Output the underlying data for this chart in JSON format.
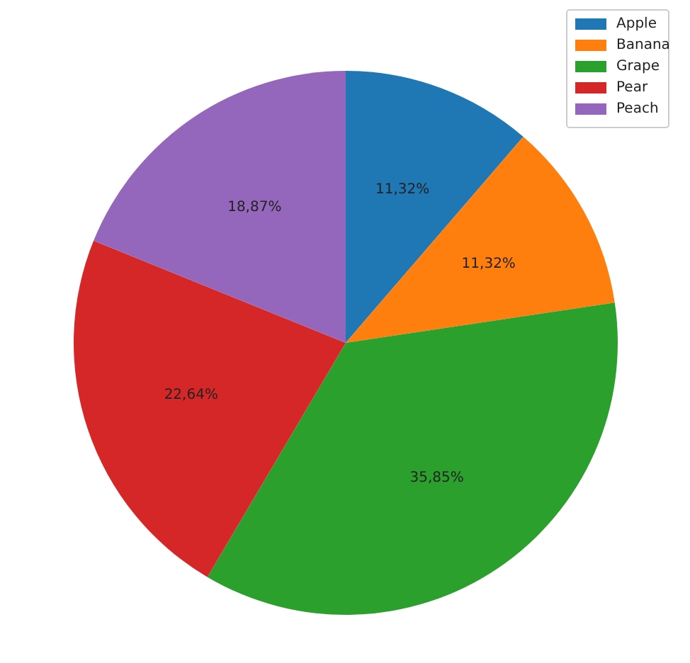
{
  "chart_data": {
    "type": "pie",
    "categories": [
      "Apple",
      "Banana",
      "Grape",
      "Pear",
      "Peach"
    ],
    "values": [
      11.32,
      11.32,
      35.85,
      22.64,
      18.87
    ],
    "colors": [
      "#1f77b4",
      "#ff7f0e",
      "#2ca02c",
      "#d62728",
      "#9467bd"
    ],
    "value_labels": [
      "11,32%",
      "11,32%",
      "35,85%",
      "22,64%",
      "18,87%"
    ],
    "legend": "top right"
  }
}
